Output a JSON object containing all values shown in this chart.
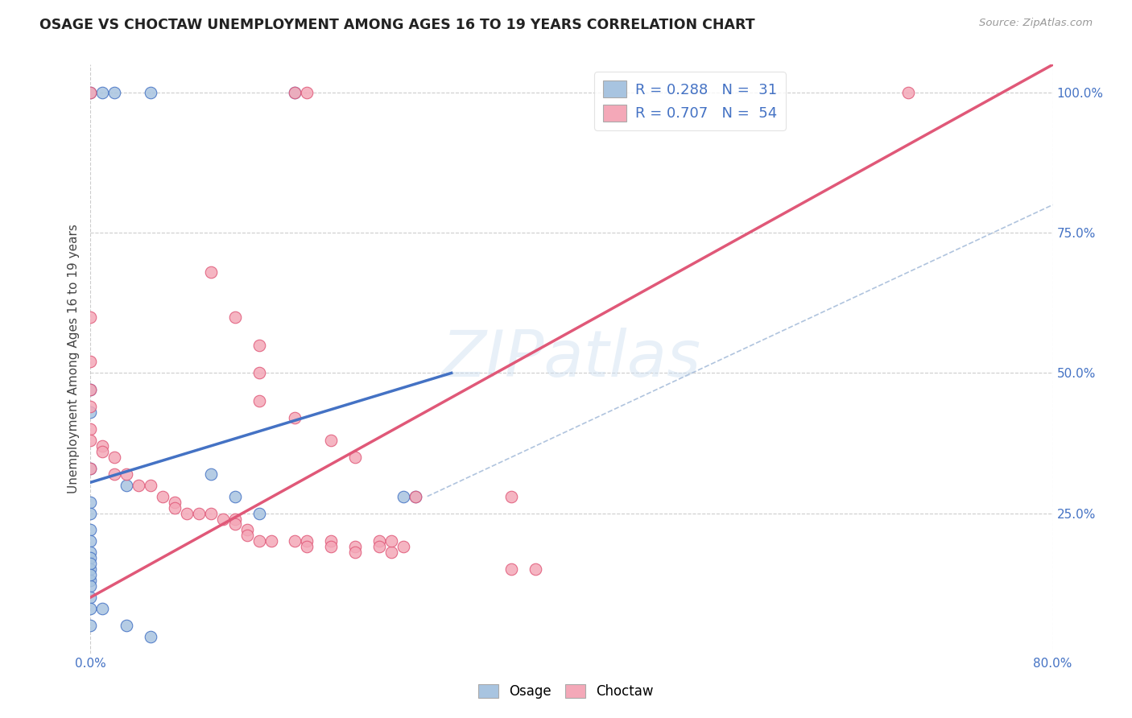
{
  "title": "OSAGE VS CHOCTAW UNEMPLOYMENT AMONG AGES 16 TO 19 YEARS CORRELATION CHART",
  "source": "Source: ZipAtlas.com",
  "ylabel": "Unemployment Among Ages 16 to 19 years",
  "xlim": [
    0.0,
    0.8
  ],
  "ylim": [
    0.0,
    1.05
  ],
  "background_color": "#ffffff",
  "grid_color": "#cccccc",
  "watermark": "ZIPatlas",
  "osage_color": "#a8c4e0",
  "choctaw_color": "#f4a8b8",
  "osage_line_color": "#4472c4",
  "choctaw_line_color": "#e05878",
  "diagonal_color": "#b0c4de",
  "osage_scatter": [
    [
      0.0,
      1.0
    ],
    [
      0.01,
      1.0
    ],
    [
      0.02,
      1.0
    ],
    [
      0.05,
      1.0
    ],
    [
      0.17,
      1.0
    ],
    [
      0.0,
      0.43
    ],
    [
      0.0,
      0.33
    ],
    [
      0.03,
      0.3
    ],
    [
      0.0,
      0.27
    ],
    [
      0.0,
      0.25
    ],
    [
      0.0,
      0.22
    ],
    [
      0.0,
      0.2
    ],
    [
      0.0,
      0.18
    ],
    [
      0.0,
      0.17
    ],
    [
      0.0,
      0.15
    ],
    [
      0.0,
      0.13
    ],
    [
      0.0,
      0.12
    ],
    [
      0.0,
      0.1
    ],
    [
      0.0,
      0.08
    ],
    [
      0.01,
      0.08
    ],
    [
      0.0,
      0.05
    ],
    [
      0.03,
      0.05
    ],
    [
      0.1,
      0.32
    ],
    [
      0.12,
      0.28
    ],
    [
      0.14,
      0.25
    ],
    [
      0.26,
      0.28
    ],
    [
      0.27,
      0.28
    ],
    [
      0.05,
      0.03
    ],
    [
      0.0,
      0.47
    ],
    [
      0.0,
      0.16
    ],
    [
      0.0,
      0.14
    ]
  ],
  "choctaw_scatter": [
    [
      0.0,
      1.0
    ],
    [
      0.17,
      1.0
    ],
    [
      0.18,
      1.0
    ],
    [
      0.68,
      1.0
    ],
    [
      0.0,
      0.6
    ],
    [
      0.0,
      0.52
    ],
    [
      0.0,
      0.47
    ],
    [
      0.0,
      0.44
    ],
    [
      0.1,
      0.68
    ],
    [
      0.12,
      0.6
    ],
    [
      0.14,
      0.55
    ],
    [
      0.14,
      0.5
    ],
    [
      0.0,
      0.4
    ],
    [
      0.0,
      0.38
    ],
    [
      0.01,
      0.37
    ],
    [
      0.01,
      0.36
    ],
    [
      0.02,
      0.35
    ],
    [
      0.0,
      0.33
    ],
    [
      0.14,
      0.45
    ],
    [
      0.17,
      0.42
    ],
    [
      0.02,
      0.32
    ],
    [
      0.03,
      0.32
    ],
    [
      0.04,
      0.3
    ],
    [
      0.05,
      0.3
    ],
    [
      0.06,
      0.28
    ],
    [
      0.07,
      0.27
    ],
    [
      0.07,
      0.26
    ],
    [
      0.08,
      0.25
    ],
    [
      0.09,
      0.25
    ],
    [
      0.1,
      0.25
    ],
    [
      0.11,
      0.24
    ],
    [
      0.12,
      0.24
    ],
    [
      0.12,
      0.23
    ],
    [
      0.13,
      0.22
    ],
    [
      0.13,
      0.21
    ],
    [
      0.14,
      0.2
    ],
    [
      0.15,
      0.2
    ],
    [
      0.17,
      0.2
    ],
    [
      0.18,
      0.2
    ],
    [
      0.18,
      0.19
    ],
    [
      0.2,
      0.2
    ],
    [
      0.2,
      0.19
    ],
    [
      0.22,
      0.19
    ],
    [
      0.22,
      0.18
    ],
    [
      0.24,
      0.2
    ],
    [
      0.24,
      0.19
    ],
    [
      0.25,
      0.18
    ],
    [
      0.25,
      0.2
    ],
    [
      0.26,
      0.19
    ],
    [
      0.2,
      0.38
    ],
    [
      0.22,
      0.35
    ],
    [
      0.27,
      0.28
    ],
    [
      0.35,
      0.28
    ],
    [
      0.35,
      0.15
    ],
    [
      0.37,
      0.15
    ]
  ],
  "osage_line_x": [
    0.0,
    0.3
  ],
  "osage_line_y": [
    0.305,
    0.5
  ],
  "choctaw_line_x": [
    0.0,
    0.8
  ],
  "choctaw_line_y": [
    0.1,
    1.05
  ],
  "diagonal_line_x": [
    0.28,
    0.8
  ],
  "diagonal_line_y": [
    0.28,
    0.8
  ]
}
